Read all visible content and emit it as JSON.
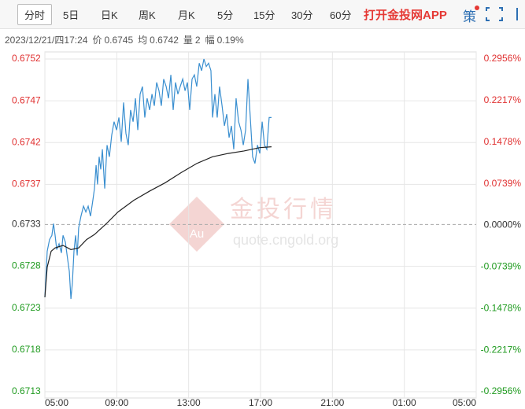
{
  "toolbar": {
    "tabs": [
      "分时",
      "5日",
      "日K",
      "周K",
      "月K",
      "5分",
      "15分",
      "30分",
      "60分"
    ],
    "active": 0,
    "app_link": "打开金投网APP",
    "strategy": "策"
  },
  "info": {
    "datetime": "2023/12/21/四17:24",
    "fields": [
      {
        "label": "价",
        "value": "0.6745"
      },
      {
        "label": "均",
        "value": "0.6742"
      },
      {
        "label": "量",
        "value": "2"
      },
      {
        "label": "幅",
        "value": "0.19%"
      }
    ]
  },
  "watermark": {
    "logo": "Au",
    "title": "金投行情",
    "url": "quote.cngold.org"
  },
  "chart_data": {
    "type": "line",
    "grid": true,
    "up_color": "#e03030",
    "down_color": "#1e9a1e",
    "flat_color": "#333333",
    "xlim": [
      0,
      24
    ],
    "xticks": [
      {
        "value": 0,
        "label": "05:00"
      },
      {
        "value": 4,
        "label": "09:00"
      },
      {
        "value": 8,
        "label": "13:00"
      },
      {
        "value": 12,
        "label": "17:00"
      },
      {
        "value": 16,
        "label": "21:00"
      },
      {
        "value": 20,
        "label": "01:00"
      },
      {
        "value": 24,
        "label": "05:00"
      }
    ],
    "ylim": [
      0.67126,
      0.67524
    ],
    "yticks": [
      {
        "value": 0.67524,
        "label": "0.6752"
      },
      {
        "value": 0.67474,
        "label": "0.6747"
      },
      {
        "value": 0.67424,
        "label": "0.6742"
      },
      {
        "value": 0.67374,
        "label": "0.6737"
      },
      {
        "value": 0.67326,
        "label": "0.6733"
      },
      {
        "value": 0.67276,
        "label": "0.6728"
      },
      {
        "value": 0.67226,
        "label": "0.6723"
      },
      {
        "value": 0.67176,
        "label": "0.6718"
      },
      {
        "value": 0.67126,
        "label": "0.6713"
      }
    ],
    "y2lim": [
      -0.2956,
      0.2956
    ],
    "y2ticks": [
      {
        "value": 0.2956,
        "label": "0.2956%"
      },
      {
        "value": 0.2217,
        "label": "0.2217%"
      },
      {
        "value": 0.1478,
        "label": "0.1478%"
      },
      {
        "value": 0.0739,
        "label": "0.0739%"
      },
      {
        "value": 0,
        "label": "0.0000%"
      },
      {
        "value": -0.0739,
        "label": "-0.0739%"
      },
      {
        "value": -0.1478,
        "label": "-0.1478%"
      },
      {
        "value": -0.2217,
        "label": "-0.2217%"
      },
      {
        "value": -0.2956,
        "label": "-0.2956%"
      }
    ],
    "series": [
      {
        "color": "#3a8fd0",
        "x": [
          0,
          0.13,
          0.26,
          0.39,
          0.48,
          0.57,
          0.66,
          0.79,
          0.92,
          1.01,
          1.14,
          1.27,
          1.36,
          1.45,
          1.53,
          1.62,
          1.71,
          1.8,
          1.88,
          2.01,
          2.15,
          2.28,
          2.41,
          2.54,
          2.67,
          2.76,
          2.85,
          2.93,
          3.02,
          3.11,
          3.2,
          3.33,
          3.46,
          3.59,
          3.72,
          3.85,
          3.99,
          4.12,
          4.25,
          4.38,
          4.51,
          4.64,
          4.77,
          4.91,
          5.04,
          5.17,
          5.3,
          5.43,
          5.56,
          5.69,
          5.83,
          5.96,
          6.09,
          6.22,
          6.35,
          6.48,
          6.61,
          6.75,
          6.88,
          7.01,
          7.14,
          7.27,
          7.4,
          7.53,
          7.67,
          7.8,
          7.93,
          8.06,
          8.19,
          8.32,
          8.45,
          8.59,
          8.72,
          8.85,
          8.98,
          9.11,
          9.24,
          9.33,
          9.46,
          9.59,
          9.72,
          9.86,
          9.99,
          10.12,
          10.25,
          10.38,
          10.51,
          10.64,
          10.78,
          10.91,
          11.04,
          11.17,
          11.3,
          11.43,
          11.56,
          11.69,
          11.83,
          11.96,
          12.09,
          12.22,
          12.35,
          12.48,
          12.61
        ],
        "values": [
          0.67239,
          0.67294,
          0.67308,
          0.67313,
          0.67327,
          0.67313,
          0.67296,
          0.67303,
          0.67292,
          0.67313,
          0.67305,
          0.67284,
          0.6727,
          0.67237,
          0.67256,
          0.67294,
          0.67313,
          0.67289,
          0.67322,
          0.67336,
          0.67348,
          0.67341,
          0.67348,
          0.67336,
          0.67355,
          0.67369,
          0.67397,
          0.67374,
          0.67407,
          0.67392,
          0.67416,
          0.67369,
          0.67421,
          0.67407,
          0.67433,
          0.67449,
          0.67439,
          0.67454,
          0.67425,
          0.67472,
          0.67435,
          0.67421,
          0.67463,
          0.67449,
          0.67477,
          0.67439,
          0.67482,
          0.67491,
          0.67454,
          0.67477,
          0.67463,
          0.67482,
          0.67468,
          0.67496,
          0.67486,
          0.67468,
          0.675,
          0.67491,
          0.67477,
          0.67505,
          0.67463,
          0.67496,
          0.67482,
          0.67491,
          0.675,
          0.67486,
          0.67496,
          0.67463,
          0.675,
          0.67505,
          0.67491,
          0.67519,
          0.6751,
          0.67524,
          0.67515,
          0.67519,
          0.6751,
          0.67454,
          0.67482,
          0.67454,
          0.67491,
          0.67468,
          0.67444,
          0.67458,
          0.6743,
          0.67444,
          0.67416,
          0.67477,
          0.67449,
          0.67439,
          0.67421,
          0.67439,
          0.675,
          0.67454,
          0.67407,
          0.67399,
          0.67421,
          0.67411,
          0.67449,
          0.67421,
          0.67416,
          0.67454,
          0.67454
        ]
      },
      {
        "color": "#222222",
        "x": [
          0,
          0.13,
          0.35,
          0.57,
          1.01,
          1.45,
          1.88,
          2.32,
          2.76,
          3.42,
          4.07,
          4.95,
          5.83,
          6.7,
          7.58,
          8.45,
          9.33,
          10.2,
          11.08,
          11.96,
          12.61
        ],
        "values": [
          0.67239,
          0.67275,
          0.67294,
          0.67298,
          0.67301,
          0.67296,
          0.67298,
          0.67308,
          0.67314,
          0.67327,
          0.67341,
          0.67355,
          0.67366,
          0.67376,
          0.67388,
          0.67399,
          0.67407,
          0.67411,
          0.67414,
          0.67418,
          0.67419
        ]
      }
    ]
  }
}
